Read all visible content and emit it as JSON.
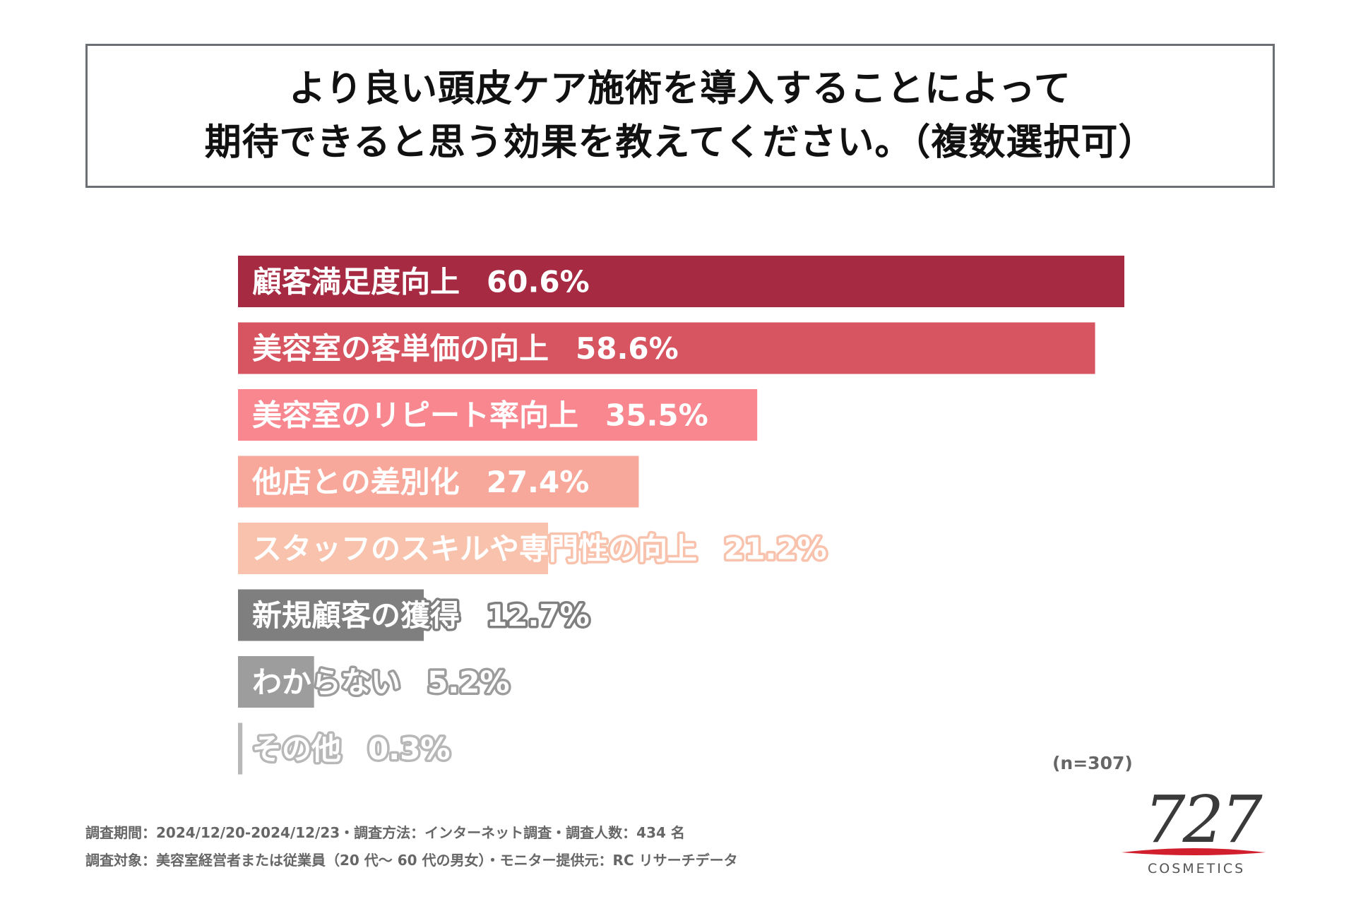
{
  "title": {
    "line1": "より良い頭皮ケア施術を導入することによって",
    "line2": "期待できると思う効果を教えてください。（複数選択可）"
  },
  "chart_data": {
    "type": "bar",
    "orientation": "horizontal",
    "title": "より良い頭皮ケア施術を導入することによって期待できると思う効果を教えてください。（複数選択可）",
    "xlabel": "",
    "ylabel": "",
    "xlim": [
      0,
      60.6
    ],
    "grid": false,
    "unit": "%",
    "categories": [
      "顧客満足度向上",
      "美容室の客単価の向上",
      "美容室のリピート率向上",
      "他店との差別化",
      "スタッフのスキルや専門性の向上",
      "新規顧客の獲得",
      "わからない",
      "その他"
    ],
    "values": [
      60.6,
      58.6,
      35.5,
      27.4,
      21.2,
      12.7,
      5.2,
      0.3
    ],
    "value_labels": [
      "60.6%",
      "58.6%",
      "35.5%",
      "27.4%",
      "21.2%",
      "12.7%",
      "5.2%",
      "0.3%"
    ],
    "colors": [
      "#a52a42",
      "#d75461",
      "#f8878f",
      "#f8a89a",
      "#f8c2ad",
      "#7f7f7f",
      "#9d9d9d",
      "#b8b8b8"
    ],
    "label_outline_colors": [
      "none",
      "none",
      "#f8878f",
      "#f8a89a",
      "#f8c2ad",
      "#7f7f7f",
      "#9d9d9d",
      "#b8b8b8"
    ]
  },
  "sample_size": "(n=307)",
  "footer": {
    "line1": "調査期間：2024/12/20-2024/12/23・調査方法：インターネット調査・調査人数：434 名",
    "line2": "調査対象：美容室経営者または従業員（20 代～ 60 代の男女）・モニター提供元：RC リサーチデータ"
  },
  "logo": {
    "number": "727",
    "text": "COSMETICS",
    "accent_color": "#d21f2e"
  }
}
